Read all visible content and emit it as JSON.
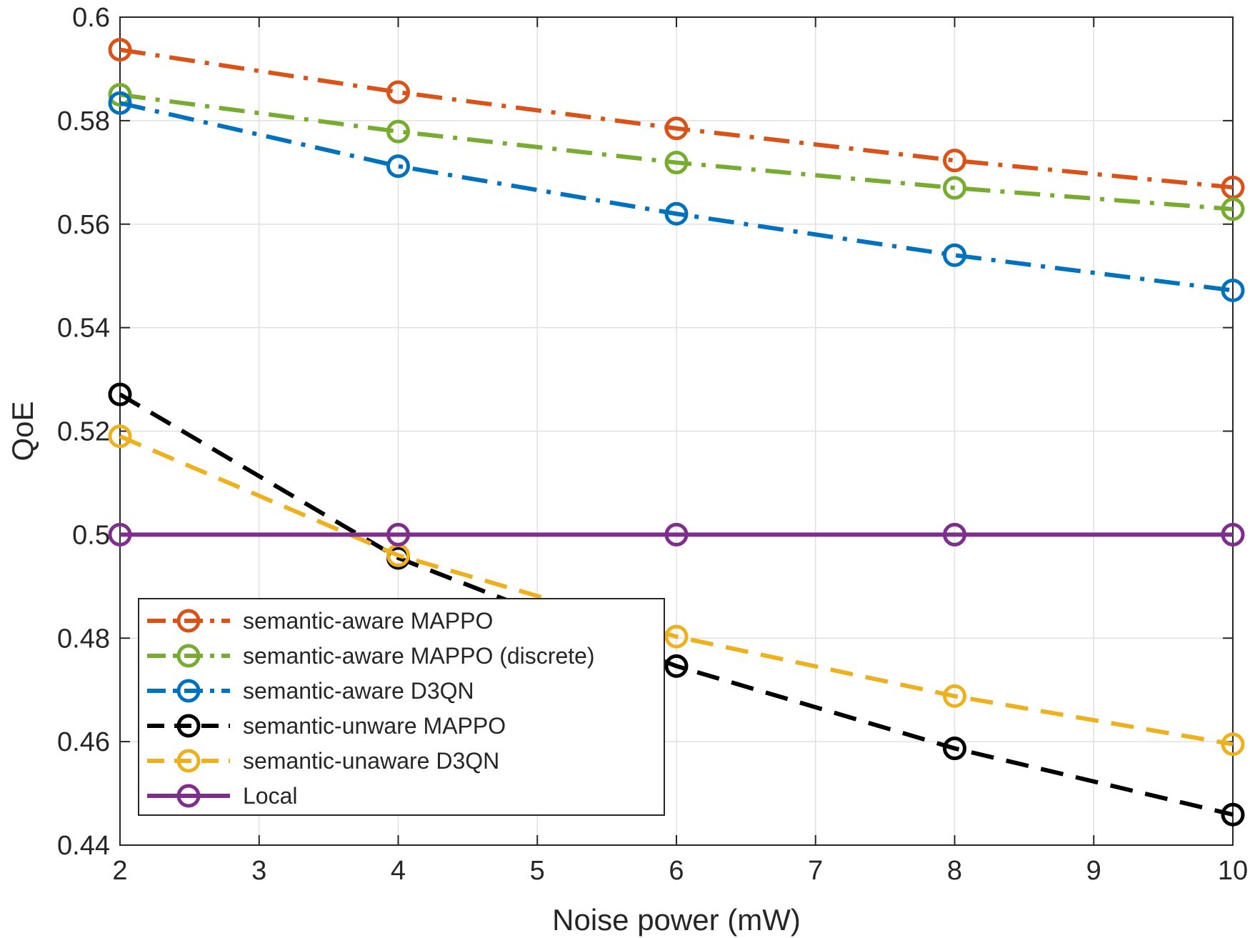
{
  "chart_data": {
    "type": "line",
    "title": "",
    "xlabel": "Noise power (mW)",
    "ylabel": "QoE",
    "xlim": [
      2,
      10
    ],
    "ylim": [
      0.44,
      0.6
    ],
    "x_ticks": [
      2,
      3,
      4,
      5,
      6,
      7,
      8,
      9,
      10
    ],
    "x_tick_labels": [
      "2",
      "3",
      "4",
      "5",
      "6",
      "7",
      "8",
      "9",
      "10"
    ],
    "y_ticks": [
      0.44,
      0.46,
      0.48,
      0.5,
      0.52,
      0.54,
      0.56,
      0.58,
      0.6
    ],
    "y_tick_labels": [
      "0.44",
      "0.46",
      "0.48",
      "0.5",
      "0.52",
      "0.54",
      "0.56",
      "0.58",
      "0.6"
    ],
    "grid": true,
    "legend_position": "bottom-left",
    "x": [
      2,
      4,
      6,
      8,
      10
    ],
    "series": [
      {
        "name": "semantic-aware MAPPO",
        "values": [
          0.5937,
          0.5855,
          0.5785,
          0.5723,
          0.5671
        ],
        "color": "#D95319",
        "dash": "dashdot",
        "marker": "circle"
      },
      {
        "name": "semantic-aware MAPPO (discrete)",
        "values": [
          0.585,
          0.5779,
          0.5719,
          0.567,
          0.5629
        ],
        "color": "#77AC30",
        "dash": "dashdot",
        "marker": "circle"
      },
      {
        "name": "semantic-aware D3QN",
        "values": [
          0.5834,
          0.5712,
          0.562,
          0.554,
          0.5472
        ],
        "color": "#0072BD",
        "dash": "dashdot",
        "marker": "circle"
      },
      {
        "name": "semantic-unware MAPPO",
        "values": [
          0.5271,
          0.4955,
          0.4746,
          0.4587,
          0.4459
        ],
        "color": "#000000",
        "dash": "dashed",
        "marker": "circle"
      },
      {
        "name": "semantic-unaware D3QN",
        "values": [
          0.519,
          0.496,
          0.4803,
          0.4688,
          0.4595
        ],
        "color": "#EDB120",
        "dash": "dashed",
        "marker": "circle"
      },
      {
        "name": "Local",
        "values": [
          0.5,
          0.5,
          0.5,
          0.5,
          0.5
        ],
        "color": "#7E2F8E",
        "dash": "solid",
        "marker": "circle"
      }
    ]
  }
}
